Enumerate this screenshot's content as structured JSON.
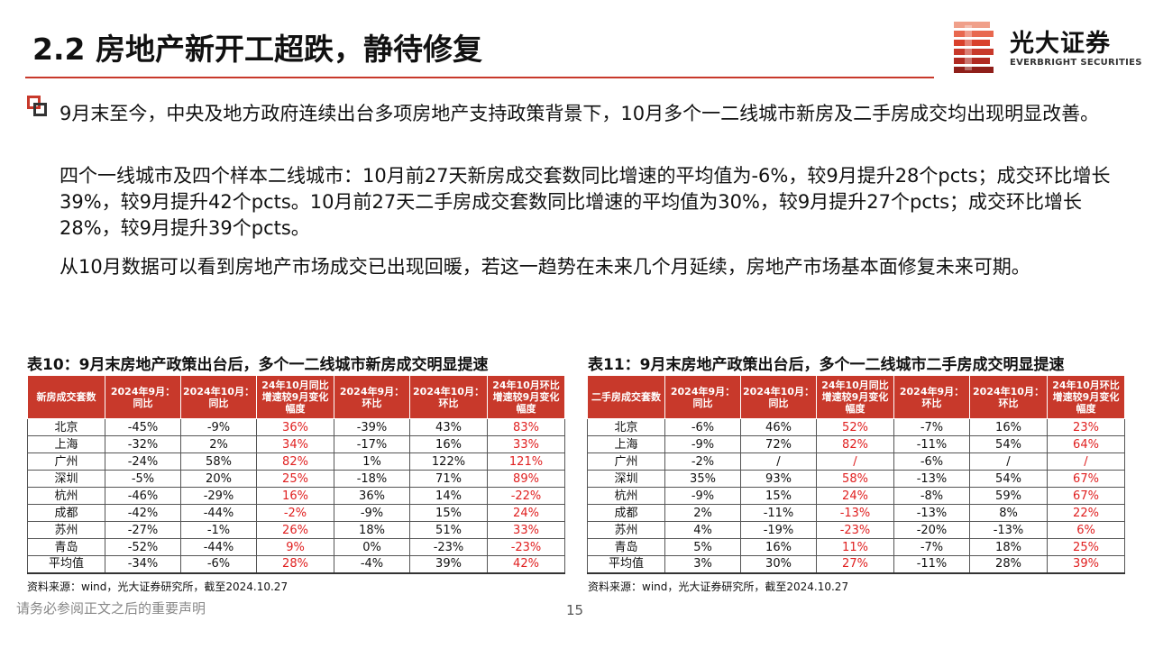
{
  "header": {
    "title": "2.2 房地产新开工超跌，静待修复",
    "logo_cn": "光大证券",
    "logo_en": "EVERBRIGHT SECURITIES",
    "accent_color": "#c8392b"
  },
  "bullets": {
    "p1": "9月末至今，中央及地方政府连续出台多项房地产支持政策背景下，10月多个一二线城市新房及二手房成交均出现明显改善。",
    "p2": "四个一线城市及四个样本二线城市：10月前27天新房成交套数同比增速的平均值为-6%，较9月提升28个pcts；成交环比增长39%，较9月提升42个pcts。10月前27天二手房成交套数同比增速的平均值为30%，较9月提升27个pcts；成交环比增长28%，较9月提升39个pcts。",
    "p3": "从10月数据可以看到房地产市场成交已出现回暖，若这一趋势在未来几个月延续，房地产市场基本面修复未来可期。"
  },
  "table1": {
    "caption": "表10：9月末房地产政策出台后，多个一二线城市新房成交明显提速",
    "headers": [
      "新房成交套数",
      "2024年9月：同比",
      "2024年10月：同比",
      "24年10月同比增速较9月变化幅度",
      "2024年9月：环比",
      "2024年10月：环比",
      "24年10月环比增速较9月变化幅度"
    ],
    "rows": [
      [
        "北京",
        "-45%",
        "-9%",
        "36%",
        "-39%",
        "43%",
        "83%"
      ],
      [
        "上海",
        "-32%",
        "2%",
        "34%",
        "-17%",
        "16%",
        "33%"
      ],
      [
        "广州",
        "-24%",
        "58%",
        "82%",
        "1%",
        "122%",
        "121%"
      ],
      [
        "深圳",
        "-5%",
        "20%",
        "25%",
        "-18%",
        "71%",
        "89%"
      ],
      [
        "杭州",
        "-46%",
        "-29%",
        "16%",
        "36%",
        "14%",
        "-22%"
      ],
      [
        "成都",
        "-42%",
        "-44%",
        "-2%",
        "-9%",
        "15%",
        "24%"
      ],
      [
        "苏州",
        "-27%",
        "-1%",
        "26%",
        "18%",
        "51%",
        "33%"
      ],
      [
        "青岛",
        "-52%",
        "-44%",
        "9%",
        "0%",
        "-23%",
        "-23%"
      ],
      [
        "平均值",
        "-34%",
        "-6%",
        "28%",
        "-4%",
        "39%",
        "42%"
      ]
    ],
    "source": "资料来源：wind，光大证券研究所，截至2024.10.27"
  },
  "table2": {
    "caption": "表11：9月末房地产政策出台后，多个一二线城市二手房成交明显提速",
    "headers": [
      "二手房成交套数",
      "2024年9月：同比",
      "2024年10月：同比",
      "24年10月同比增速较9月变化幅度",
      "2024年9月：环比",
      "2024年10月：环比",
      "24年10月环比增速较9月变化幅度"
    ],
    "rows": [
      [
        "北京",
        "-6%",
        "46%",
        "52%",
        "-7%",
        "16%",
        "23%"
      ],
      [
        "上海",
        "-9%",
        "72%",
        "82%",
        "-11%",
        "54%",
        "64%"
      ],
      [
        "广州",
        "-2%",
        "/",
        "/",
        "-6%",
        "/",
        "/"
      ],
      [
        "深圳",
        "35%",
        "93%",
        "58%",
        "-13%",
        "54%",
        "67%"
      ],
      [
        "杭州",
        "-9%",
        "15%",
        "24%",
        "-8%",
        "59%",
        "67%"
      ],
      [
        "成都",
        "2%",
        "-11%",
        "-13%",
        "-13%",
        "8%",
        "22%"
      ],
      [
        "苏州",
        "4%",
        "-19%",
        "-23%",
        "-20%",
        "-13%",
        "6%"
      ],
      [
        "青岛",
        "5%",
        "16%",
        "11%",
        "-7%",
        "18%",
        "25%"
      ],
      [
        "平均值",
        "3%",
        "30%",
        "27%",
        "-11%",
        "28%",
        "39%"
      ]
    ],
    "source": "资料来源：wind，光大证券研究所，截至2024.10.27"
  },
  "footer": {
    "disclaimer": "请务必参阅正文之后的重要声明",
    "page_number": "15"
  }
}
